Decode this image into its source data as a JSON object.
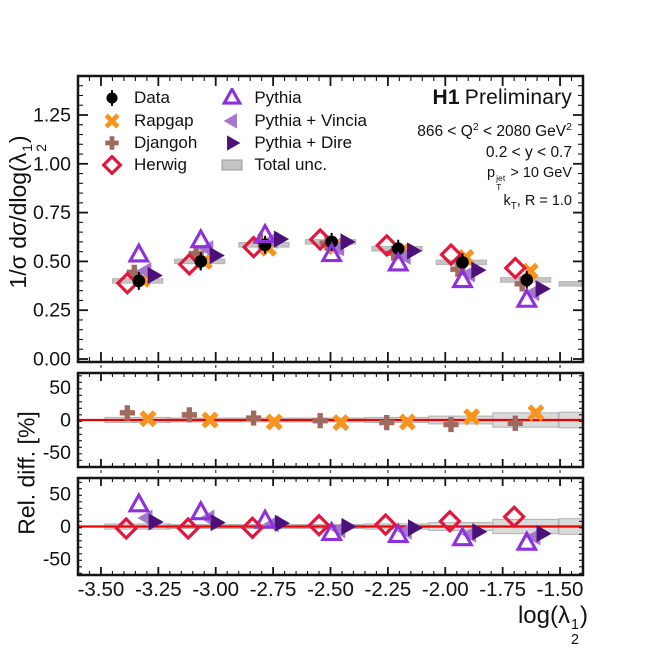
{
  "chart_data": {
    "type": "scatter",
    "experiment_label": {
      "bold": "H1",
      "rest": "Preliminary"
    },
    "annotations": [
      {
        "name": "q2-range",
        "segs": [
          {
            "t": "t",
            "v": "866 < Q"
          },
          {
            "t": "sup",
            "v": "2"
          },
          {
            "t": "t",
            "v": " < 2080 GeV"
          },
          {
            "t": "sup",
            "v": "2"
          }
        ]
      },
      {
        "name": "y-range",
        "segs": [
          {
            "t": "t",
            "v": "0.2 < y < 0.7"
          }
        ]
      },
      {
        "name": "pt-cut",
        "segs": [
          {
            "t": "t",
            "v": "p"
          },
          {
            "t": "stack",
            "sup": "jet",
            "sub": "T"
          },
          {
            "t": "t",
            "v": " > 10 GeV"
          }
        ]
      },
      {
        "name": "jet-algo",
        "segs": [
          {
            "t": "t",
            "v": "k"
          },
          {
            "t": "sub",
            "v": "T"
          },
          {
            "t": "t",
            "v": ", R = 1.0"
          }
        ]
      }
    ],
    "legend": {
      "columns": [
        [
          {
            "id": "data",
            "label": "Data"
          },
          {
            "id": "rapgap",
            "label": "Rapgap"
          },
          {
            "id": "djangoh",
            "label": "Djangoh"
          },
          {
            "id": "herwig",
            "label": "Herwig"
          }
        ],
        [
          {
            "id": "pythia",
            "label": "Pythia"
          },
          {
            "id": "vincia",
            "label": "Pythia + Vincia"
          },
          {
            "id": "dire",
            "label": "Pythia + Dire"
          },
          {
            "id": "unc",
            "label": "Total unc."
          }
        ]
      ]
    },
    "x_axis": {
      "title_segs": [
        {
          "t": "t",
          "v": "log(λ"
        },
        {
          "t": "stack",
          "sup": "1",
          "sub": "2"
        },
        {
          "t": "t",
          "v": ")"
        }
      ],
      "range": [
        -3.6,
        -1.4
      ],
      "major_ticks": [
        -3.5,
        -3.25,
        -3.0,
        -2.75,
        -2.5,
        -2.25,
        -2.0,
        -1.75,
        -1.5
      ],
      "minor_step": 0.05,
      "label_decimals": 2
    },
    "main_panel": {
      "ylabel_segs": [
        {
          "t": "t",
          "v": "1/σ dσ/dlog(λ"
        },
        {
          "t": "stack",
          "sup": "1",
          "sub": "2"
        },
        {
          "t": "t",
          "v": ")"
        }
      ],
      "ylim": [
        0,
        1.45
      ],
      "major_ticks": [
        0.0,
        0.25,
        0.5,
        0.75,
        1.0,
        1.25
      ],
      "minor_step": 0.05,
      "label_decimals": 2
    },
    "ratio_panels": {
      "ylabel_segs": [
        {
          "t": "t",
          "v": "Rel. diff. [%]"
        }
      ],
      "ylim": [
        -72,
        72
      ],
      "major_ticks": [
        -50,
        0,
        50
      ],
      "minor_step": 10,
      "label_decimals": 0
    },
    "bins": {
      "centers": [
        -3.34,
        -3.07,
        -2.79,
        -2.5,
        -2.21,
        -1.93,
        -1.65
      ],
      "band_half_width_main": 0.11,
      "band_half_width_ratio": 0.1425,
      "overflow_bin": {
        "x_range": [
          -1.505,
          -1.4
        ],
        "main_value": 0.385,
        "ratio_unc_half": 12
      }
    },
    "main_values": {
      "data": [
        0.4,
        0.5,
        0.585,
        0.6,
        0.565,
        0.495,
        0.405
      ],
      "rapgap": [
        0.408,
        0.5,
        0.567,
        0.576,
        0.548,
        0.52,
        0.45
      ],
      "djangoh": [
        0.444,
        0.54,
        0.603,
        0.594,
        0.542,
        0.46,
        0.385
      ],
      "herwig": [
        0.388,
        0.485,
        0.573,
        0.612,
        0.582,
        0.535,
        0.466
      ],
      "pythia": [
        0.532,
        0.605,
        0.632,
        0.534,
        0.486,
        0.401,
        0.3
      ],
      "vincia": [
        0.452,
        0.565,
        0.608,
        0.57,
        0.526,
        0.436,
        0.34
      ],
      "dire": [
        0.428,
        0.53,
        0.614,
        0.6,
        0.554,
        0.455,
        0.36
      ],
      "unc_half": 0.012
    },
    "rel_diff_mid": {
      "djangoh": [
        11,
        8,
        3,
        -1,
        -4,
        -7,
        -5
      ],
      "rapgap": [
        2,
        0,
        -3,
        -4,
        -3,
        5,
        11
      ],
      "unc_half": [
        4,
        3,
        3,
        3,
        4,
        6,
        11
      ]
    },
    "rel_diff_bottom": {
      "herwig": [
        -3,
        -3,
        -2,
        2,
        3,
        8,
        15
      ],
      "pythia": [
        33,
        21,
        8,
        -11,
        -14,
        -19,
        -26
      ],
      "vincia": [
        13,
        13,
        4,
        -5,
        -7,
        -12,
        -16
      ],
      "dire": [
        7,
        6,
        5,
        0,
        -2,
        -8,
        -11
      ],
      "unc_half": [
        4,
        3,
        3,
        3,
        4,
        6,
        11
      ]
    },
    "x_offsets": {
      "main": {
        "herwig": -0.045,
        "djangoh": -0.015,
        "data": 0.005,
        "rapgap": 0.02,
        "pythia": 0.005,
        "vincia": 0.035,
        "dire": 0.068
      },
      "mid": {
        "djangoh": -0.045,
        "rapgap": 0.045
      },
      "bottom": {
        "herwig": -0.05,
        "pythia": 0.005,
        "vincia": 0.04,
        "dire": 0.072
      }
    },
    "colors": {
      "data": "#000000",
      "rapgap": "#F7941E",
      "djangoh": "#A06A5E",
      "herwig": "#E3173D",
      "pythia": "#8E30DB",
      "vincia": "#A576CE",
      "dire": "#4C1179",
      "unc_fill_main": "#C4C4C4",
      "unc_fill_ratio": "#DADADA",
      "unc_edge": "#AFAFAF",
      "zero_line": "#EC0000",
      "frame": "#141414"
    }
  }
}
